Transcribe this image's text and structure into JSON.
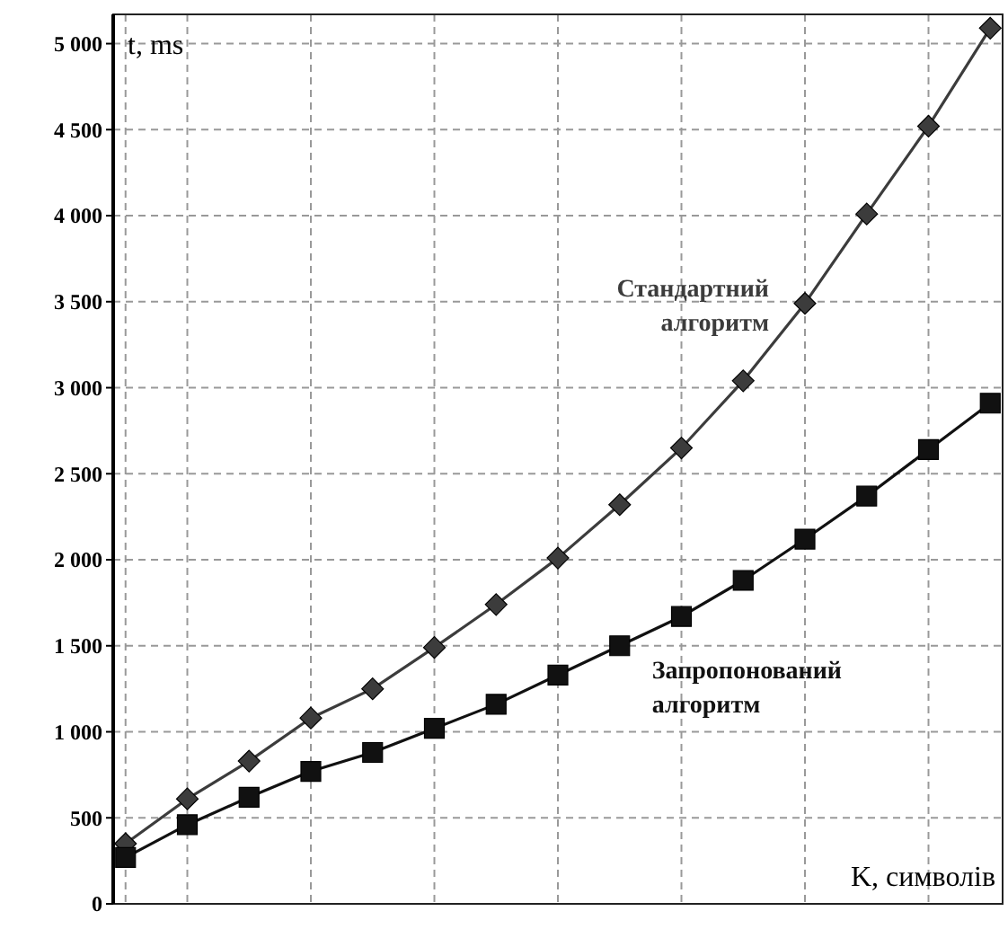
{
  "chart_data": {
    "type": "line",
    "xlabel": "K, символів",
    "ylabel": "t, ms",
    "categories": [
      null,
      null,
      null,
      null,
      null,
      null,
      null,
      null,
      null,
      null,
      null,
      null,
      null,
      null,
      null
    ],
    "series": [
      {
        "name": "Стандартний алгоритм",
        "color": "#3c3c3c",
        "marker": "diamond",
        "values": [
          350,
          610,
          830,
          1080,
          1250,
          1490,
          1740,
          2010,
          2320,
          2650,
          3040,
          3490,
          4010,
          4520,
          5090
        ]
      },
      {
        "name": "Запропонований алгоритм",
        "color": "#111111",
        "marker": "square",
        "values": [
          270,
          460,
          620,
          770,
          880,
          1020,
          1160,
          1330,
          1500,
          1670,
          1880,
          2120,
          2370,
          2640,
          2910
        ]
      }
    ],
    "ylim": [
      0,
      5170
    ],
    "yticks": [
      0,
      500,
      {
        "value": 1000,
        "label": "1 000"
      },
      {
        "value": 1500,
        "label": "1 500"
      },
      {
        "value": 2000,
        "label": "2 000"
      },
      {
        "value": 2500,
        "label": "2 500"
      },
      {
        "value": 3000,
        "label": "3 000"
      },
      {
        "value": 3500,
        "label": "3 500"
      },
      {
        "value": 4000,
        "label": "4 000"
      },
      {
        "value": 4500,
        "label": "4 500"
      },
      {
        "value": 5000,
        "label": "5 000"
      }
    ],
    "grid": true,
    "tick_labels": "y",
    "line_style": "solid"
  }
}
